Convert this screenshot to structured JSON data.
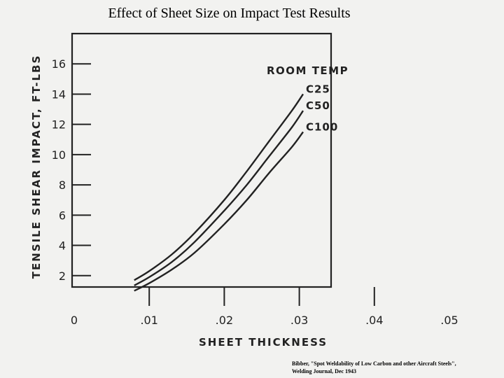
{
  "title": "Effect of Sheet Size on Impact Test Results",
  "citation": {
    "line1": "Bibber, \"Spot Weldability of Low Carbon and other Aircraft Steels\",",
    "line2": "Welding Journal, Dec 1943"
  },
  "chart_data": {
    "type": "line",
    "title": "",
    "annotation": "ROOM TEMP",
    "xlabel": "SHEET THICKNESS",
    "ylabel": "TENSILE SHEAR IMPACT, FT-LBS",
    "xlim": [
      0,
      0.05
    ],
    "ylim": [
      0,
      18
    ],
    "x_ticks": [
      0,
      0.01,
      0.02,
      0.03,
      0.04,
      0.05
    ],
    "x_tick_labels": [
      "0",
      ".01",
      ".02",
      ".03",
      ".04",
      ".05"
    ],
    "y_ticks": [
      2,
      4,
      6,
      8,
      10,
      12,
      14,
      16
    ],
    "y_tick_labels": [
      "2",
      "4",
      "6",
      "8",
      "10",
      "12",
      "14",
      "16"
    ],
    "grid": false,
    "series": [
      {
        "name": "C25",
        "x": [
          0.008,
          0.01,
          0.013,
          0.016,
          0.02,
          0.023,
          0.026,
          0.029,
          0.0305
        ],
        "y": [
          1.7,
          2.3,
          3.4,
          4.8,
          7.0,
          8.9,
          10.9,
          12.9,
          14.0
        ]
      },
      {
        "name": "C50",
        "x": [
          0.008,
          0.01,
          0.013,
          0.016,
          0.02,
          0.023,
          0.026,
          0.029,
          0.0305
        ],
        "y": [
          1.35,
          1.9,
          2.9,
          4.2,
          6.3,
          8.0,
          9.9,
          11.8,
          12.9
        ]
      },
      {
        "name": "C100",
        "x": [
          0.008,
          0.01,
          0.013,
          0.016,
          0.02,
          0.023,
          0.026,
          0.029,
          0.0305
        ],
        "y": [
          1.0,
          1.5,
          2.4,
          3.5,
          5.4,
          7.0,
          8.8,
          10.5,
          11.5
        ]
      }
    ]
  }
}
